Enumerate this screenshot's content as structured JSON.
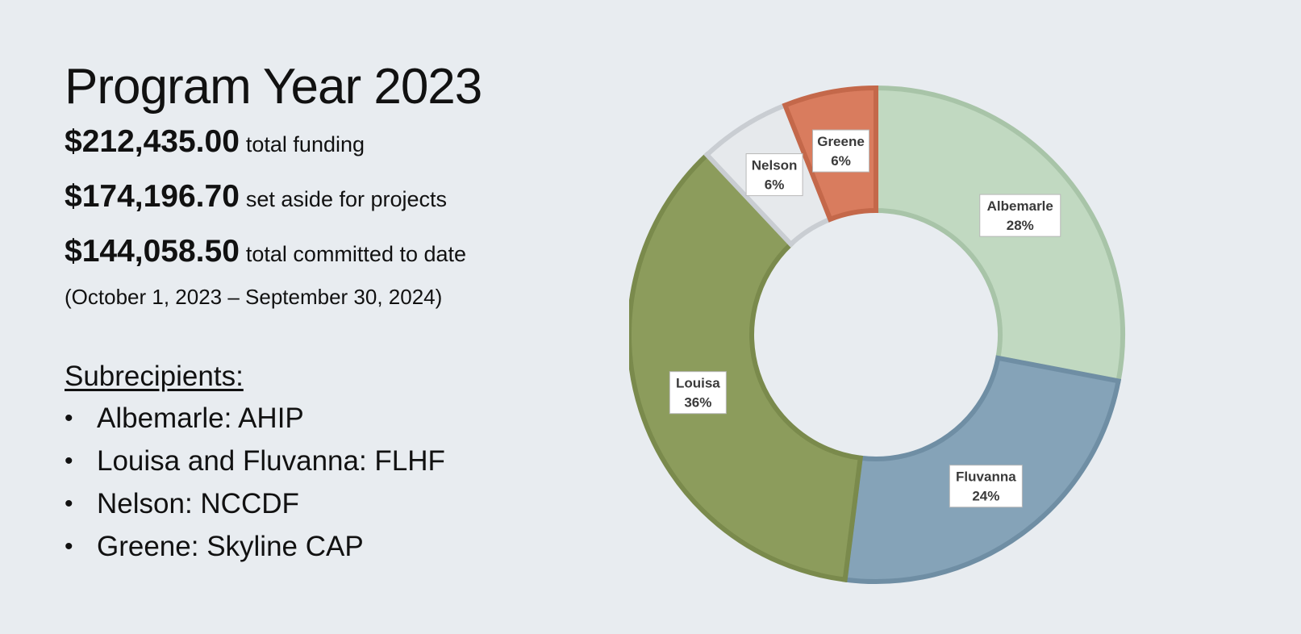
{
  "title": "Program Year 2023",
  "funding": [
    {
      "amount": "$212,435.00",
      "label": "total funding"
    },
    {
      "amount": "$174,196.70",
      "label": "set aside for projects"
    },
    {
      "amount": "$144,058.50",
      "label": "total committed to date"
    }
  ],
  "period": "(October 1, 2023 – September 30, 2024)",
  "subrecipients": {
    "heading": "Subrecipients:",
    "bullet": "•",
    "items": [
      "Albemarle: AHIP",
      "Louisa and Fluvanna: FLHF",
      "Nelson: NCCDF",
      "Greene: Skyline CAP"
    ]
  },
  "chart_data": {
    "type": "pie",
    "style": "donut",
    "title": "",
    "start": "12 o'clock",
    "direction": "clockwise",
    "series": [
      {
        "name": "Albemarle",
        "value": 28,
        "label": "28%",
        "color": "#c1d9c1",
        "stroke": "#a8c4a8"
      },
      {
        "name": "Fluvanna",
        "value": 24,
        "label": "24%",
        "color": "#85a3b8",
        "stroke": "#6f8ea4"
      },
      {
        "name": "Louisa",
        "value": 36,
        "label": "36%",
        "color": "#8c9c5c",
        "stroke": "#7a8a4c"
      },
      {
        "name": "Nelson",
        "value": 6,
        "label": "6%",
        "color": "#e6e9ec",
        "stroke": "#c9cdd2"
      },
      {
        "name": "Greene",
        "value": 6,
        "label": "6%",
        "color": "#d97c5e",
        "stroke": "#c4684a"
      }
    ],
    "legend": "none",
    "data_labels": "category name and percentage"
  }
}
